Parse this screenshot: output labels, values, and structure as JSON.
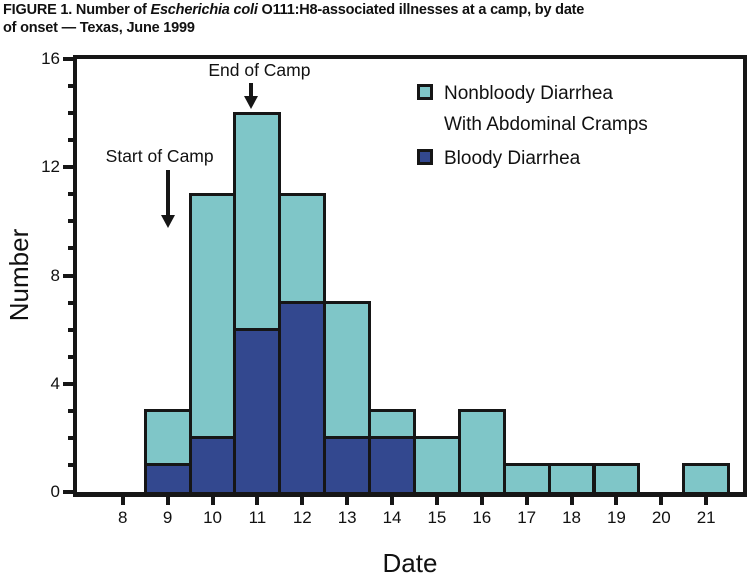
{
  "figure": {
    "title_prefix": "FIGURE 1. Number of ",
    "title_italic": "Escherichia coli",
    "title_suffix": " O111:H8-associated illnesses at a camp, by date",
    "title_line2": "of onset — Texas, June 1999"
  },
  "chart_data": {
    "type": "bar",
    "stacked": true,
    "title": "FIGURE 1. Number of Escherichia coli O111:H8-associated illnesses at a camp, by date of onset — Texas, June 1999",
    "xlabel": "Date",
    "ylabel": "Number",
    "categories": [
      8,
      9,
      10,
      11,
      12,
      13,
      14,
      15,
      16,
      17,
      18,
      19,
      20,
      21
    ],
    "series": [
      {
        "name": "Bloody Diarrhea",
        "stack_position": "bottom",
        "color": "#33488f",
        "values": [
          0,
          1,
          2,
          6,
          7,
          2,
          2,
          0,
          0,
          0,
          0,
          0,
          0,
          0
        ]
      },
      {
        "name": "Nonbloody Diarrhea With Abdominal Cramps",
        "stack_position": "top",
        "color": "#7fc6c8",
        "values": [
          0,
          2,
          9,
          8,
          4,
          5,
          1,
          2,
          3,
          1,
          1,
          1,
          0,
          1
        ]
      }
    ],
    "totals": [
      0,
      3,
      11,
      14,
      11,
      7,
      3,
      2,
      3,
      1,
      1,
      1,
      0,
      1
    ],
    "ylim": [
      0,
      16
    ],
    "yticks_major": [
      0,
      4,
      8,
      12,
      16
    ],
    "ytick_minor_step": 1,
    "xlim": [
      7.0,
      21.8
    ],
    "grid": false,
    "legend_position": "top-right",
    "legend": {
      "entries": [
        {
          "label_line1": "Nonbloody Diarrhea",
          "label_line2": "With Abdominal Cramps",
          "color": "#7fc6c8"
        },
        {
          "label_line1": "Bloody Diarrhea",
          "label_line2": "",
          "color": "#33488f"
        }
      ]
    },
    "annotations": [
      {
        "label": "Start of Camp",
        "x": 9
      },
      {
        "label": "End of Camp",
        "x": 11
      }
    ]
  },
  "colors": {
    "nonbloody": "#7fc6c8",
    "bloody": "#33488f",
    "axis": "#161616",
    "background": "#ffffff"
  }
}
